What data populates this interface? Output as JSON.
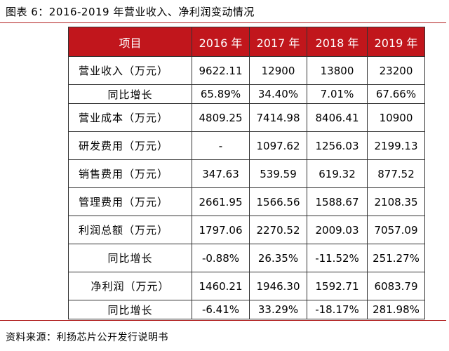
{
  "title": "图表 6：2016-2019 年营业收入、净利润变动情况",
  "table": {
    "headers": [
      "项目",
      "2016 年",
      "2017 年",
      "2018 年",
      "2019 年"
    ],
    "rows": [
      {
        "label": "营业收入（万元）",
        "values": [
          "9622.11",
          "12900",
          "13800",
          "23200"
        ]
      },
      {
        "label": "同比增长",
        "values": [
          "65.89%",
          "34.40%",
          "7.01%",
          "67.66%"
        ]
      },
      {
        "label": "营业成本（万元）",
        "values": [
          "4809.25",
          "7414.98",
          "8406.41",
          "10900"
        ]
      },
      {
        "label": "研发费用（万元）",
        "values": [
          "-",
          "1097.62",
          "1256.03",
          "2199.13"
        ]
      },
      {
        "label": "销售费用（万元）",
        "values": [
          "347.63",
          "539.59",
          "619.32",
          "877.52"
        ]
      },
      {
        "label": "管理费用（万元）",
        "values": [
          "2661.95",
          "1566.56",
          "1588.67",
          "2108.35"
        ]
      },
      {
        "label": "利润总额（万元）",
        "values": [
          "1797.06",
          "2270.52",
          "2009.03",
          "7057.09"
        ]
      },
      {
        "label": "同比增长",
        "values": [
          "-0.88%",
          "26.35%",
          "-11.52%",
          "251.27%"
        ]
      },
      {
        "label": "净利润（万元）",
        "values": [
          "1460.21",
          "1946.30",
          "1592.71",
          "6083.79"
        ]
      },
      {
        "label": "同比增长",
        "values": [
          "-6.41%",
          "33.29%",
          "-18.17%",
          "281.98%"
        ]
      }
    ]
  },
  "source": "资料来源：利扬芯片公开发行说明书"
}
